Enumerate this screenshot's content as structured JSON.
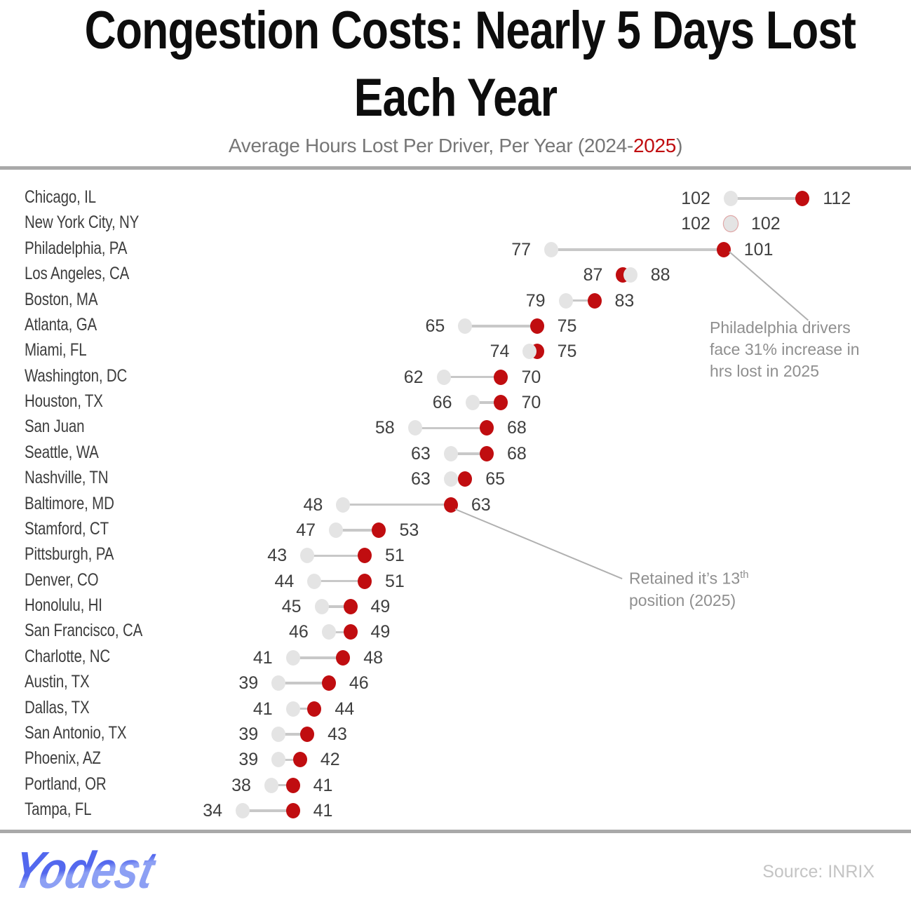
{
  "title": {
    "line1": "Congestion Costs: Nearly 5 Days Lost",
    "line2": "Each Year"
  },
  "subtitle": {
    "prefix": "Average Hours Lost Per Driver, Per Year (2024-",
    "highlight": "2025",
    "suffix": ")"
  },
  "colors": {
    "red_2025": "#c00d10",
    "gray_2024": "#e4e4e4",
    "connector": "#c8c8c8",
    "city_text": "#3d3d3d",
    "value_text": "#3f3f3f",
    "annotation_text": "#8f8f8f",
    "divider": "#a9a9a9",
    "logo_blue_top": "#5468ee",
    "logo_blue_bottom": "#8da0f4"
  },
  "chart_data": {
    "type": "dumbbell",
    "unit": "hours lost per driver per year",
    "series": [
      {
        "name": "2024",
        "color": "#e4e4e4"
      },
      {
        "name": "2025",
        "color": "#c00d10"
      }
    ],
    "legend_position": "subtitle",
    "grid": false,
    "value_range_shown": [
      34,
      112
    ],
    "cities": [
      {
        "city": "Chicago, IL",
        "y2024": 102,
        "y2025": 112
      },
      {
        "city": "New York City, NY",
        "y2024": 102,
        "y2025": 102
      },
      {
        "city": "Philadelphia, PA",
        "y2024": 77,
        "y2025": 101
      },
      {
        "city": "Los Angeles, CA",
        "y2024": 88,
        "y2025": 87
      },
      {
        "city": "Boston, MA",
        "y2024": 79,
        "y2025": 83
      },
      {
        "city": "Atlanta, GA",
        "y2024": 65,
        "y2025": 75
      },
      {
        "city": "Miami, FL",
        "y2024": 74,
        "y2025": 75
      },
      {
        "city": "Washington, DC",
        "y2024": 62,
        "y2025": 70
      },
      {
        "city": "Houston, TX",
        "y2024": 66,
        "y2025": 70
      },
      {
        "city": "San Juan",
        "y2024": 58,
        "y2025": 68
      },
      {
        "city": "Seattle, WA",
        "y2024": 63,
        "y2025": 68
      },
      {
        "city": "Nashville, TN",
        "y2024": 63,
        "y2025": 65
      },
      {
        "city": "Baltimore, MD",
        "y2024": 48,
        "y2025": 63
      },
      {
        "city": "Stamford, CT",
        "y2024": 47,
        "y2025": 53
      },
      {
        "city": "Pittsburgh, PA",
        "y2024": 43,
        "y2025": 51
      },
      {
        "city": "Denver, CO",
        "y2024": 44,
        "y2025": 51
      },
      {
        "city": "Honolulu, HI",
        "y2024": 45,
        "y2025": 49
      },
      {
        "city": "San Francisco, CA",
        "y2024": 46,
        "y2025": 49
      },
      {
        "city": "Charlotte, NC",
        "y2024": 41,
        "y2025": 48
      },
      {
        "city": "Austin, TX",
        "y2024": 39,
        "y2025": 46
      },
      {
        "city": "Dallas, TX",
        "y2024": 41,
        "y2025": 44
      },
      {
        "city": "San Antonio, TX",
        "y2024": 39,
        "y2025": 43
      },
      {
        "city": "Phoenix, AZ",
        "y2024": 39,
        "y2025": 42
      },
      {
        "city": "Portland, OR",
        "y2024": 38,
        "y2025": 41
      },
      {
        "city": "Tampa, FL",
        "y2024": 34,
        "y2025": 41
      }
    ]
  },
  "annotations": {
    "philadelphia": {
      "line1": "Philadelphia drivers",
      "line2": "face 31% increase in",
      "line3": "hrs lost in 2025"
    },
    "baltimore": {
      "line1_pre": "Retained it’s 13",
      "line1_sup": "th",
      "line2": "position (2025)"
    }
  },
  "footer": {
    "logo_text": "Yodest",
    "source": "Source: INRIX"
  }
}
